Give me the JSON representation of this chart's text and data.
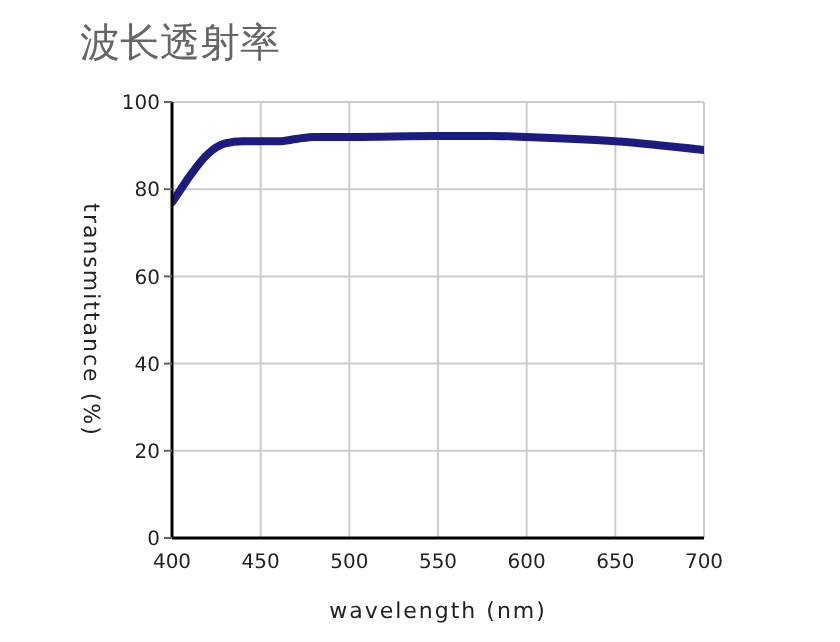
{
  "chart_data": {
    "type": "line",
    "title": "波长透射率",
    "xlabel": "wavelength (nm)",
    "ylabel": "transmittance (%)",
    "x": [
      400,
      405,
      410,
      420,
      430,
      440,
      450,
      460,
      470,
      480,
      500,
      550,
      580,
      600,
      650,
      700
    ],
    "series": [
      {
        "color": "#1c1c80",
        "values": [
          77,
          80,
          83,
          88,
          90.5,
          91,
          91,
          91,
          91.5,
          92,
          92,
          92.2,
          92.2,
          92,
          91,
          89
        ]
      }
    ],
    "xlim": [
      400,
      700
    ],
    "ylim": [
      0,
      100
    ],
    "xticks": [
      400,
      450,
      500,
      550,
      600,
      650,
      700
    ],
    "yticks": [
      0,
      20,
      40,
      60,
      80,
      100
    ],
    "grid": true,
    "marker": "none",
    "line_style": "solid"
  }
}
